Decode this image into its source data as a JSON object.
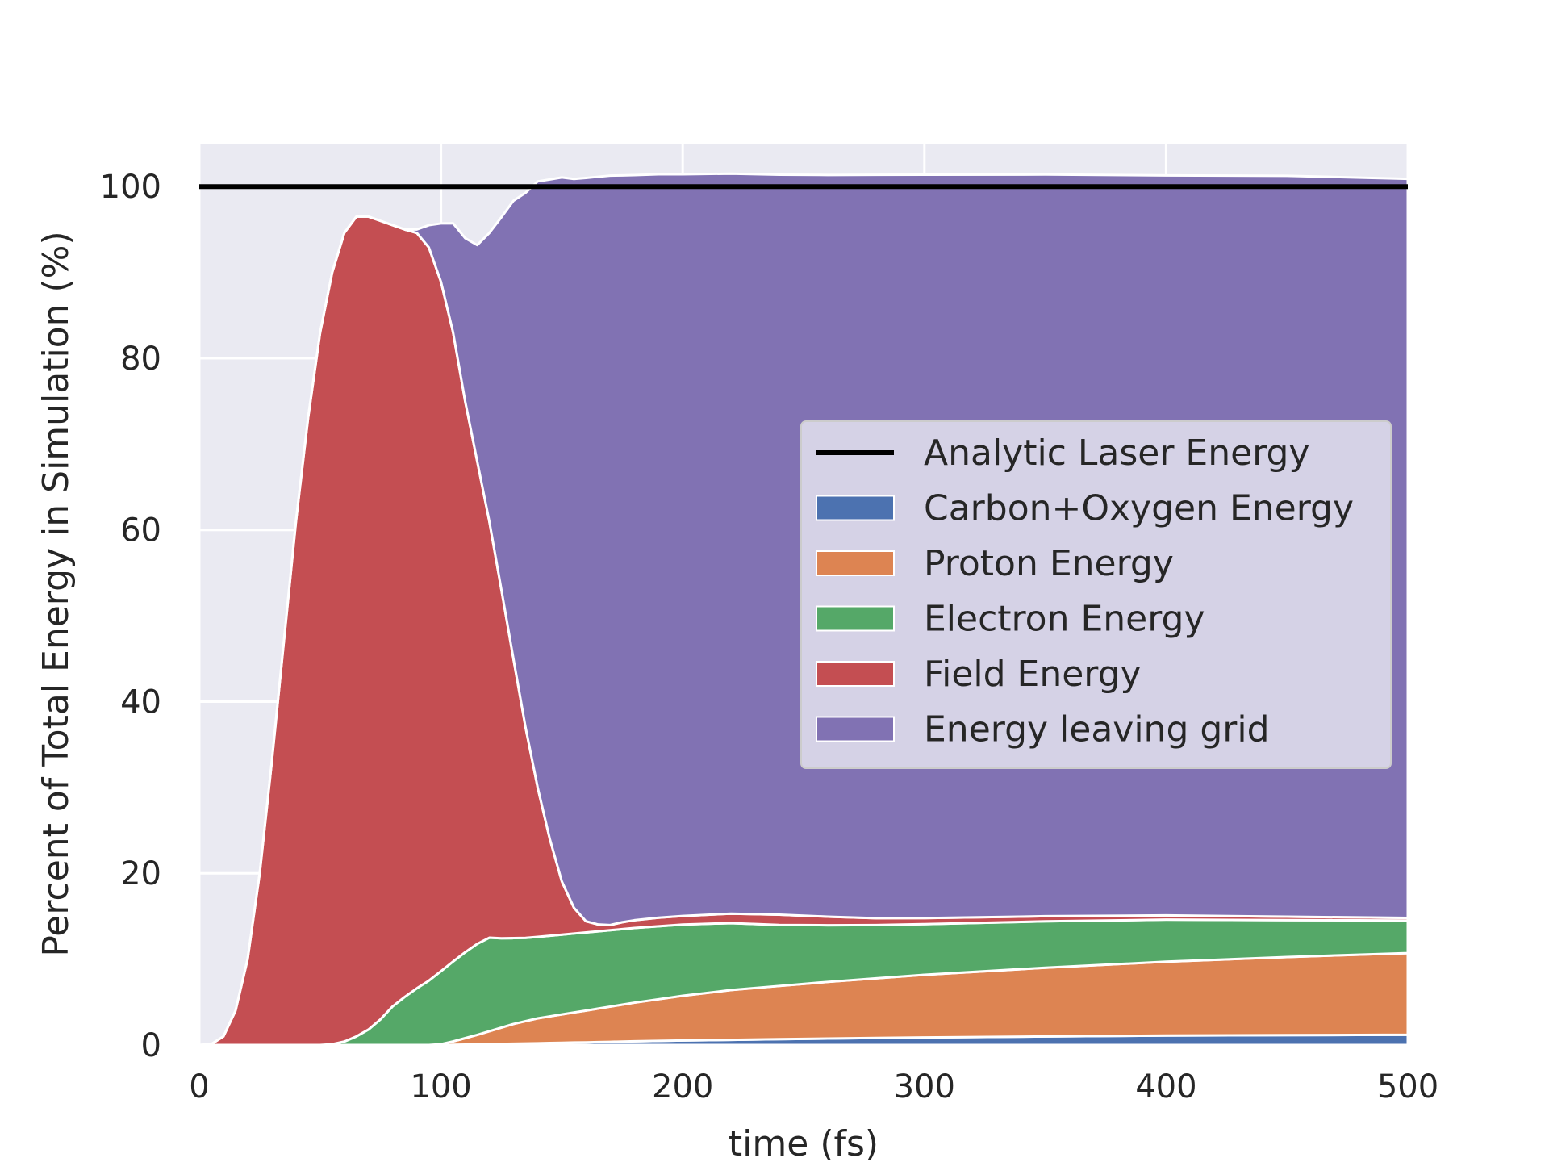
{
  "chart_data": {
    "type": "area",
    "stacked": true,
    "xlabel": "time (fs)",
    "ylabel": "Percent of Total Energy in Simulation (%)",
    "xlim": [
      0,
      500
    ],
    "ylim": [
      0,
      105
    ],
    "xticks": [
      0,
      100,
      200,
      300,
      400,
      500
    ],
    "yticks": [
      0,
      20,
      40,
      60,
      80,
      100
    ],
    "grid": true,
    "legend_position": "center-right",
    "x": [
      0,
      5,
      10,
      15,
      20,
      25,
      30,
      35,
      40,
      45,
      50,
      55,
      60,
      65,
      70,
      75,
      80,
      85,
      90,
      95,
      100,
      105,
      110,
      115,
      120,
      125,
      130,
      135,
      140,
      145,
      150,
      155,
      160,
      165,
      170,
      175,
      180,
      190,
      200,
      220,
      240,
      260,
      280,
      300,
      350,
      400,
      450,
      500
    ],
    "reference_line": {
      "name": "Analytic Laser Energy",
      "y": 100,
      "color": "#000000"
    },
    "series": [
      {
        "name": "Carbon+Oxygen Energy",
        "color": "#4c72b0",
        "values": [
          0,
          0,
          0,
          0,
          0,
          0,
          0,
          0,
          0,
          0,
          0,
          0,
          0,
          0,
          0,
          0,
          0,
          0,
          0,
          0,
          0,
          0.02,
          0.05,
          0.08,
          0.1,
          0.13,
          0.15,
          0.18,
          0.2,
          0.23,
          0.26,
          0.29,
          0.31,
          0.34,
          0.37,
          0.4,
          0.43,
          0.48,
          0.53,
          0.6,
          0.68,
          0.75,
          0.82,
          0.88,
          1.0,
          1.1,
          1.15,
          1.2
        ]
      },
      {
        "name": "Proton Energy",
        "color": "#dd8452",
        "values": [
          0,
          0,
          0,
          0,
          0,
          0,
          0,
          0,
          0,
          0,
          0,
          0,
          0,
          0,
          0,
          0,
          0,
          0,
          0,
          0,
          0.1,
          0.4,
          0.75,
          1.1,
          1.5,
          1.9,
          2.3,
          2.6,
          2.9,
          3.1,
          3.3,
          3.5,
          3.7,
          3.9,
          4.1,
          4.3,
          4.5,
          4.85,
          5.2,
          5.8,
          6.2,
          6.6,
          6.95,
          7.3,
          8.0,
          8.6,
          9.1,
          9.5
        ]
      },
      {
        "name": "Electron Energy",
        "color": "#55a868",
        "values": [
          0,
          0,
          0,
          0,
          0,
          0,
          0,
          0,
          0,
          0,
          0,
          0.1,
          0.4,
          1.0,
          1.8,
          3.0,
          4.5,
          5.6,
          6.6,
          7.5,
          8.5,
          9.3,
          10.0,
          10.6,
          10.9,
          10.4,
          10.0,
          9.7,
          9.5,
          9.4,
          9.3,
          9.2,
          9.1,
          9.0,
          8.9,
          8.8,
          8.7,
          8.5,
          8.3,
          7.8,
          7.1,
          6.6,
          6.2,
          5.9,
          5.4,
          4.9,
          4.3,
          3.8
        ]
      },
      {
        "name": "Field Energy",
        "color": "#c44e52",
        "values": [
          0,
          0.1,
          1.0,
          4.0,
          10.0,
          20.0,
          33.0,
          47.0,
          61.0,
          73.0,
          83.0,
          89.9,
          94.2,
          95.5,
          94.7,
          93.0,
          91.0,
          89.4,
          88.0,
          85.4,
          80.3,
          73.3,
          64.2,
          56.2,
          48.5,
          40.6,
          32.5,
          24.5,
          17.4,
          11.3,
          6.2,
          3.0,
          1.3,
          0.8,
          0.6,
          0.8,
          0.9,
          1.0,
          1.0,
          1.1,
          1.2,
          1.0,
          0.8,
          0.7,
          0.6,
          0.5,
          0.4,
          0.3
        ]
      },
      {
        "name": "Energy leaving grid",
        "color": "#8172b3",
        "values": [
          0,
          0,
          0,
          0,
          0,
          0,
          0,
          0,
          0,
          0,
          0,
          0,
          0,
          0,
          0,
          0,
          0,
          0,
          0.4,
          2.6,
          6.8,
          12.7,
          19.0,
          25.2,
          33.6,
          43.4,
          53.4,
          62.3,
          70.6,
          76.8,
          82.0,
          84.9,
          86.6,
          87.1,
          87.3,
          87.0,
          86.8,
          86.6,
          86.4,
          86.2,
          86.2,
          86.4,
          86.6,
          86.6,
          86.4,
          86.2,
          86.3,
          86.1
        ]
      }
    ]
  }
}
